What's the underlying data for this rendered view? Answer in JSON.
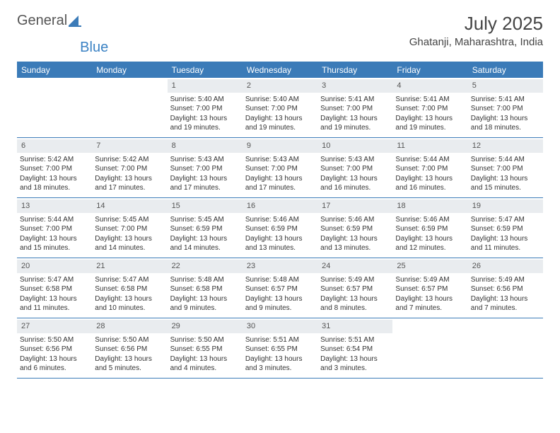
{
  "brand": {
    "part1": "General",
    "part2": "Blue"
  },
  "title": "July 2025",
  "location": "Ghatanji, Maharashtra, India",
  "colors": {
    "headerBg": "#3b7bb8",
    "dayBg": "#e9ecef",
    "text": "#333333"
  },
  "dayNames": [
    "Sunday",
    "Monday",
    "Tuesday",
    "Wednesday",
    "Thursday",
    "Friday",
    "Saturday"
  ],
  "weeks": [
    [
      {
        "empty": true
      },
      {
        "empty": true
      },
      {
        "n": "1",
        "sr": "5:40 AM",
        "ss": "7:00 PM",
        "dl": "13 hours and 19 minutes."
      },
      {
        "n": "2",
        "sr": "5:40 AM",
        "ss": "7:00 PM",
        "dl": "13 hours and 19 minutes."
      },
      {
        "n": "3",
        "sr": "5:41 AM",
        "ss": "7:00 PM",
        "dl": "13 hours and 19 minutes."
      },
      {
        "n": "4",
        "sr": "5:41 AM",
        "ss": "7:00 PM",
        "dl": "13 hours and 19 minutes."
      },
      {
        "n": "5",
        "sr": "5:41 AM",
        "ss": "7:00 PM",
        "dl": "13 hours and 18 minutes."
      }
    ],
    [
      {
        "n": "6",
        "sr": "5:42 AM",
        "ss": "7:00 PM",
        "dl": "13 hours and 18 minutes."
      },
      {
        "n": "7",
        "sr": "5:42 AM",
        "ss": "7:00 PM",
        "dl": "13 hours and 17 minutes."
      },
      {
        "n": "8",
        "sr": "5:43 AM",
        "ss": "7:00 PM",
        "dl": "13 hours and 17 minutes."
      },
      {
        "n": "9",
        "sr": "5:43 AM",
        "ss": "7:00 PM",
        "dl": "13 hours and 17 minutes."
      },
      {
        "n": "10",
        "sr": "5:43 AM",
        "ss": "7:00 PM",
        "dl": "13 hours and 16 minutes."
      },
      {
        "n": "11",
        "sr": "5:44 AM",
        "ss": "7:00 PM",
        "dl": "13 hours and 16 minutes."
      },
      {
        "n": "12",
        "sr": "5:44 AM",
        "ss": "7:00 PM",
        "dl": "13 hours and 15 minutes."
      }
    ],
    [
      {
        "n": "13",
        "sr": "5:44 AM",
        "ss": "7:00 PM",
        "dl": "13 hours and 15 minutes."
      },
      {
        "n": "14",
        "sr": "5:45 AM",
        "ss": "7:00 PM",
        "dl": "13 hours and 14 minutes."
      },
      {
        "n": "15",
        "sr": "5:45 AM",
        "ss": "6:59 PM",
        "dl": "13 hours and 14 minutes."
      },
      {
        "n": "16",
        "sr": "5:46 AM",
        "ss": "6:59 PM",
        "dl": "13 hours and 13 minutes."
      },
      {
        "n": "17",
        "sr": "5:46 AM",
        "ss": "6:59 PM",
        "dl": "13 hours and 13 minutes."
      },
      {
        "n": "18",
        "sr": "5:46 AM",
        "ss": "6:59 PM",
        "dl": "13 hours and 12 minutes."
      },
      {
        "n": "19",
        "sr": "5:47 AM",
        "ss": "6:59 PM",
        "dl": "13 hours and 11 minutes."
      }
    ],
    [
      {
        "n": "20",
        "sr": "5:47 AM",
        "ss": "6:58 PM",
        "dl": "13 hours and 11 minutes."
      },
      {
        "n": "21",
        "sr": "5:47 AM",
        "ss": "6:58 PM",
        "dl": "13 hours and 10 minutes."
      },
      {
        "n": "22",
        "sr": "5:48 AM",
        "ss": "6:58 PM",
        "dl": "13 hours and 9 minutes."
      },
      {
        "n": "23",
        "sr": "5:48 AM",
        "ss": "6:57 PM",
        "dl": "13 hours and 9 minutes."
      },
      {
        "n": "24",
        "sr": "5:49 AM",
        "ss": "6:57 PM",
        "dl": "13 hours and 8 minutes."
      },
      {
        "n": "25",
        "sr": "5:49 AM",
        "ss": "6:57 PM",
        "dl": "13 hours and 7 minutes."
      },
      {
        "n": "26",
        "sr": "5:49 AM",
        "ss": "6:56 PM",
        "dl": "13 hours and 7 minutes."
      }
    ],
    [
      {
        "n": "27",
        "sr": "5:50 AM",
        "ss": "6:56 PM",
        "dl": "13 hours and 6 minutes."
      },
      {
        "n": "28",
        "sr": "5:50 AM",
        "ss": "6:56 PM",
        "dl": "13 hours and 5 minutes."
      },
      {
        "n": "29",
        "sr": "5:50 AM",
        "ss": "6:55 PM",
        "dl": "13 hours and 4 minutes."
      },
      {
        "n": "30",
        "sr": "5:51 AM",
        "ss": "6:55 PM",
        "dl": "13 hours and 3 minutes."
      },
      {
        "n": "31",
        "sr": "5:51 AM",
        "ss": "6:54 PM",
        "dl": "13 hours and 3 minutes."
      },
      {
        "empty": true
      },
      {
        "empty": true
      }
    ]
  ],
  "labels": {
    "sunrise": "Sunrise: ",
    "sunset": "Sunset: ",
    "daylight": "Daylight: "
  }
}
